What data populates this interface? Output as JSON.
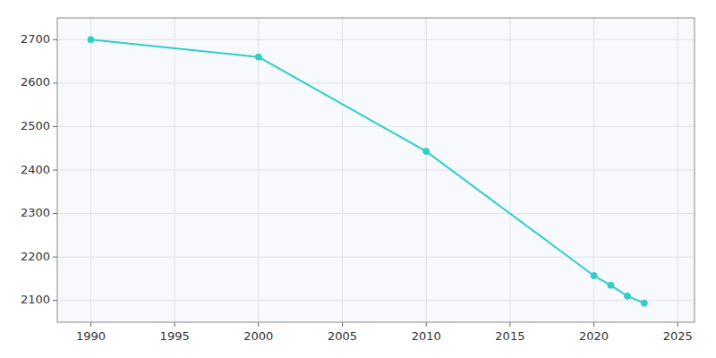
{
  "chart_data": {
    "type": "line",
    "x": [
      1990,
      2000,
      2010,
      2020,
      2021,
      2022,
      2023
    ],
    "values": [
      2700,
      2660,
      2443,
      2157,
      2135,
      2110,
      2094
    ],
    "color": "#2ecfc8",
    "marker": "circle",
    "xlim": [
      1988,
      2026
    ],
    "ylim": [
      2050,
      2750
    ],
    "xticks": [
      1990,
      1995,
      2000,
      2005,
      2010,
      2015,
      2020,
      2025
    ],
    "yticks": [
      2100,
      2200,
      2300,
      2400,
      2500,
      2600,
      2700
    ],
    "grid": true
  }
}
